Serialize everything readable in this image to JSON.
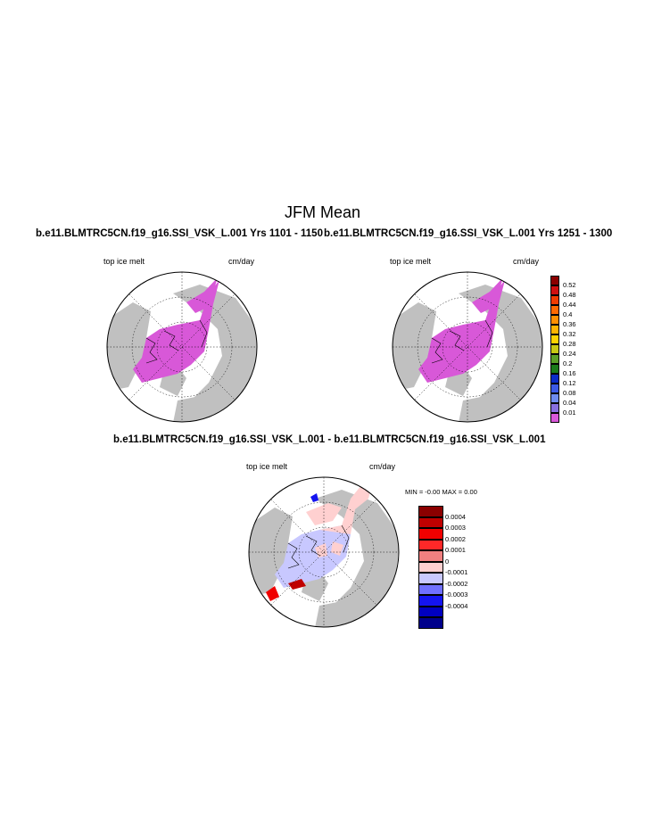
{
  "page": {
    "title": "JFM Mean"
  },
  "panels": [
    {
      "title": "b.e11.BLMTRC5CN.f19_g16.SSI_VSK_L.001  Yrs 1101 - 1150",
      "left_label": "top ice melt",
      "right_label": "cm/day"
    },
    {
      "title": "b.e11.BLMTRC5CN.f19_g16.SSI_VSK_L.001  Yrs 1251 - 1300",
      "left_label": "top ice melt",
      "right_label": "cm/day"
    },
    {
      "title": "b.e11.BLMTRC5CN.f19_g16.SSI_VSK_L.001 - b.e11.BLMTRC5CN.f19_g16.SSI_VSK_L.001",
      "left_label": "top ice melt",
      "right_label": "cm/day",
      "minmax": "MIN =  -0.00 MAX =   0.00"
    }
  ],
  "colorbar_top": {
    "labels": [
      "0.52",
      "0.48",
      "0.44",
      "0.4",
      "0.36",
      "0.32",
      "0.28",
      "0.24",
      "0.2",
      "0.16",
      "0.12",
      "0.08",
      "0.04",
      "0.01"
    ],
    "colors": [
      "#8b0000",
      "#d01010",
      "#f03c00",
      "#ff6a00",
      "#ff9000",
      "#ffb400",
      "#ffd200",
      "#c8c814",
      "#5a9e28",
      "#1a7a1a",
      "#0a2bc8",
      "#3c5ae6",
      "#6e8cf0",
      "#8870e0",
      "#d858d8"
    ]
  },
  "colorbar_diff": {
    "labels": [
      "0.0004",
      "0.0003",
      "0.0002",
      "0.0001",
      "0",
      "-0.0001",
      "-0.0002",
      "-0.0003",
      "-0.0004"
    ],
    "colors": [
      "#8b0000",
      "#c00000",
      "#f00000",
      "#ff2828",
      "#f08080",
      "#ffd0d0",
      "#c8c8ff",
      "#7070ff",
      "#1414f0",
      "#0000c0",
      "#00008b"
    ]
  },
  "colors": {
    "land": "#c0c0c0",
    "ocean": "#ffffff",
    "ice_melt": "#d858d8",
    "diff_pos": "#ffd0d0",
    "diff_neg": "#c8c8ff"
  }
}
